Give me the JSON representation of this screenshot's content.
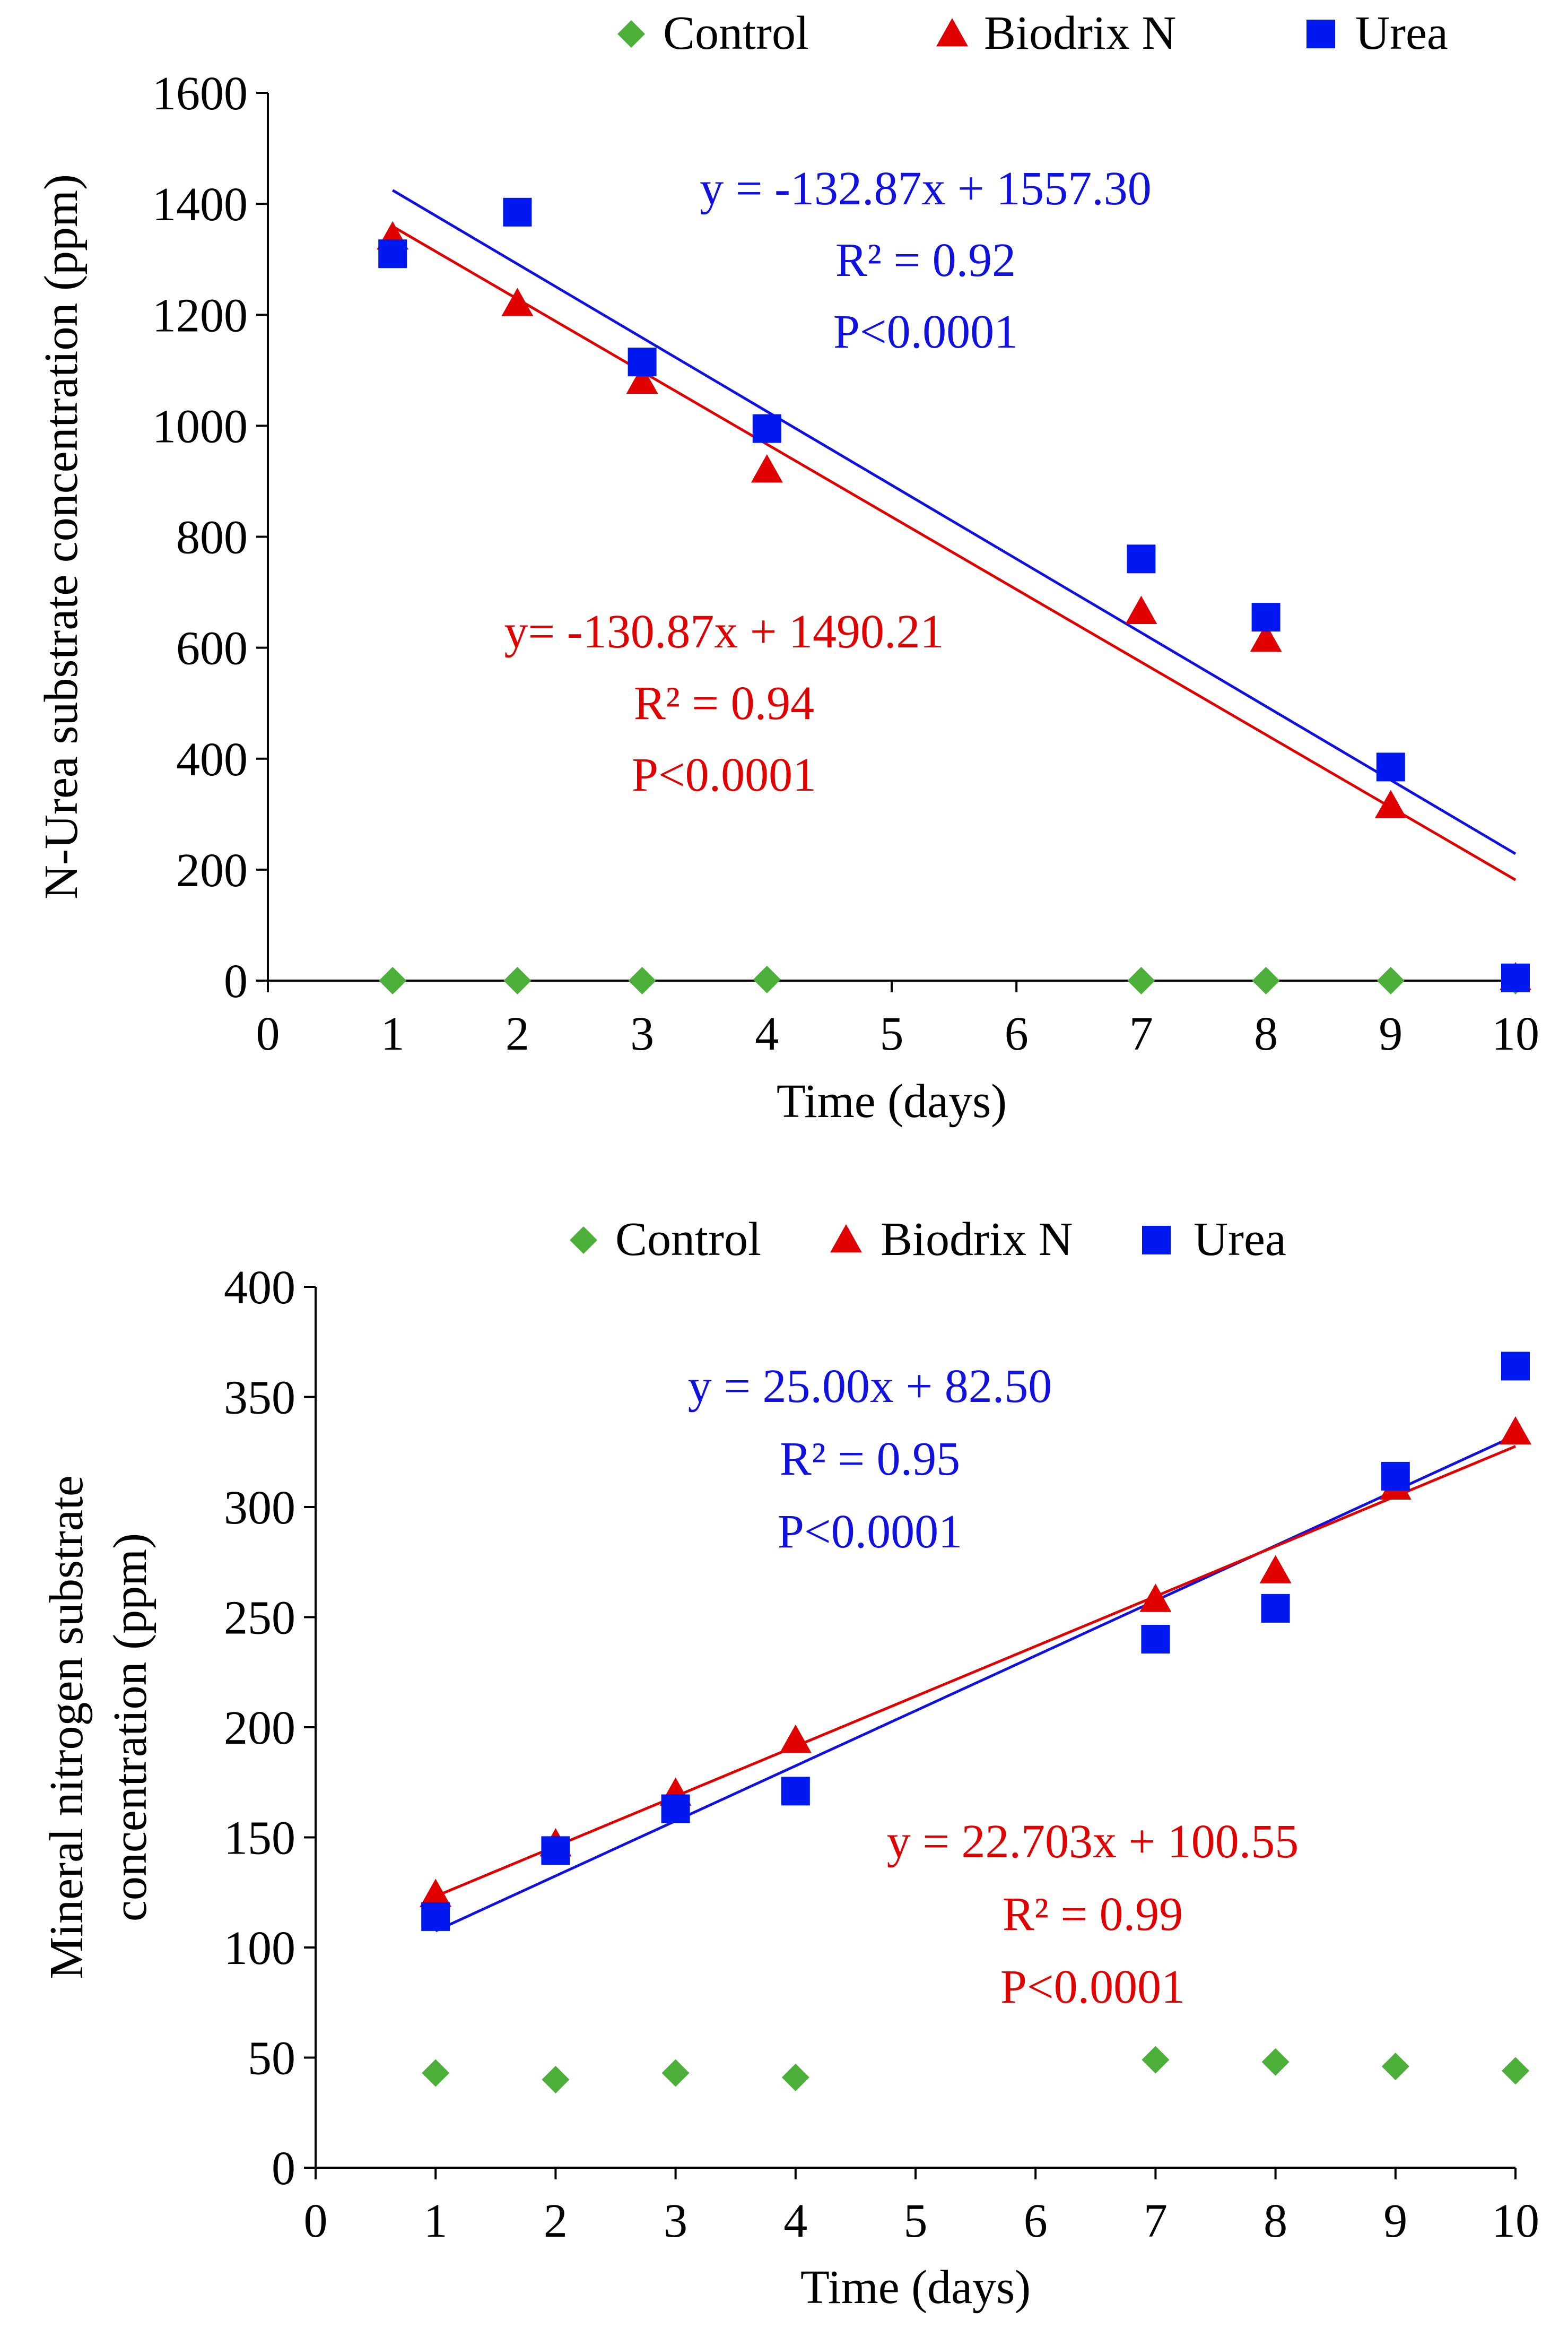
{
  "chart_data": [
    {
      "type": "scatter",
      "title": "",
      "xlabel": "Time (days)",
      "ylabel_lines": [
        "N-Urea substrate concentration (ppm)"
      ],
      "xlim": [
        0,
        10
      ],
      "ylim": [
        0,
        1600
      ],
      "x_ticks": [
        0,
        1,
        2,
        3,
        4,
        5,
        6,
        7,
        8,
        9,
        10
      ],
      "x_tick_labels": [
        "0",
        "1",
        "2",
        "3",
        "4",
        "5",
        "6",
        "7",
        "8",
        "9",
        "10"
      ],
      "y_ticks": [
        0,
        200,
        400,
        600,
        800,
        1000,
        1200,
        1400,
        1600
      ],
      "y_tick_labels": [
        "0",
        "200",
        "400",
        "600",
        "800",
        "1000",
        "1200",
        "1400",
        "1600"
      ],
      "grid": false,
      "legend_position": "top",
      "series": [
        {
          "name": "Control",
          "marker": "diamond",
          "color": "#4CAF3A",
          "x": [
            1,
            2,
            3,
            4,
            7,
            8,
            9,
            10
          ],
          "y": [
            0,
            0,
            0,
            2,
            0,
            0,
            0,
            0
          ]
        },
        {
          "name": "Biodrix N",
          "marker": "triangle",
          "color": "#E00000",
          "x": [
            1,
            2,
            3,
            4,
            7,
            8,
            9,
            10
          ],
          "y": [
            1340,
            1220,
            1080,
            920,
            665,
            615,
            315,
            5
          ]
        },
        {
          "name": "Urea",
          "marker": "square",
          "color": "#0018F0",
          "x": [
            1,
            2,
            3,
            4,
            7,
            8,
            9,
            10
          ],
          "y": [
            1310,
            1385,
            1115,
            995,
            760,
            655,
            385,
            5
          ]
        }
      ],
      "trendlines": [
        {
          "series": "Urea",
          "color": "#1010E0",
          "slope": -132.87,
          "intercept": 1557.3,
          "x_range": [
            1,
            10
          ]
        },
        {
          "series": "Biodrix N",
          "color": "#E00000",
          "slope": -130.87,
          "intercept": 1490.21,
          "x_range": [
            1,
            10
          ]
        }
      ],
      "annotations": [
        {
          "color": "#1010E0",
          "lines": [
            "y = -132.87x + 1557.30",
            "R² = 0.92",
            "P<0.0001"
          ]
        },
        {
          "color": "#E00000",
          "lines": [
            "y= -130.87x + 1490.21",
            "R² = 0.94",
            "P<0.0001"
          ]
        }
      ]
    },
    {
      "type": "scatter",
      "title": "",
      "xlabel": "Time (days)",
      "ylabel_lines": [
        "Mineral nitrogen substrate",
        "concentration (ppm)"
      ],
      "xlim": [
        0,
        10
      ],
      "ylim": [
        0,
        400
      ],
      "x_ticks": [
        0,
        1,
        2,
        3,
        4,
        5,
        6,
        7,
        8,
        9,
        10
      ],
      "x_tick_labels": [
        "0",
        "1",
        "2",
        "3",
        "4",
        "5",
        "6",
        "7",
        "8",
        "9",
        "10"
      ],
      "y_ticks": [
        0,
        50,
        100,
        150,
        200,
        250,
        300,
        350,
        400
      ],
      "y_tick_labels": [
        "0",
        "50",
        "100",
        "150",
        "200",
        "250",
        "300",
        "350",
        "400"
      ],
      "grid": false,
      "legend_position": "top",
      "series": [
        {
          "name": "Control",
          "marker": "diamond",
          "color": "#4CAF3A",
          "x": [
            1,
            2,
            3,
            4,
            7,
            8,
            9,
            10
          ],
          "y": [
            43,
            40,
            43,
            41,
            49,
            48,
            46,
            44
          ]
        },
        {
          "name": "Biodrix N",
          "marker": "triangle",
          "color": "#E00000",
          "x": [
            1,
            2,
            3,
            4,
            7,
            8,
            9,
            10
          ],
          "y": [
            124,
            147,
            170,
            194,
            258,
            271,
            309,
            334
          ]
        },
        {
          "name": "Urea",
          "marker": "square",
          "color": "#0018F0",
          "x": [
            1,
            2,
            3,
            4,
            7,
            8,
            9,
            10
          ],
          "y": [
            114,
            144,
            163,
            171,
            240,
            254,
            314,
            364
          ]
        }
      ],
      "trendlines": [
        {
          "series": "Urea",
          "color": "#1010E0",
          "slope": 25.0,
          "intercept": 82.5,
          "x_range": [
            1,
            10
          ]
        },
        {
          "series": "Biodrix N",
          "color": "#E00000",
          "slope": 22.703,
          "intercept": 100.55,
          "x_range": [
            1,
            10
          ]
        }
      ],
      "annotations": [
        {
          "color": "#1010E0",
          "lines": [
            "y = 25.00x + 82.50",
            "R² = 0.95",
            "P<0.0001"
          ]
        },
        {
          "color": "#E00000",
          "lines": [
            "y = 22.703x + 100.55",
            "R² = 0.99",
            "P<0.0001"
          ]
        }
      ]
    }
  ]
}
